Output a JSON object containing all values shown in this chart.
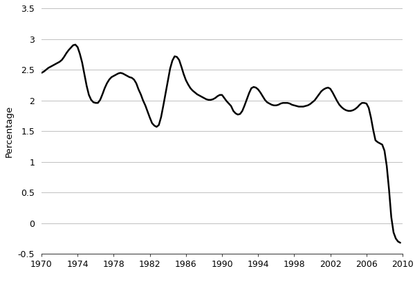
{
  "ylabel": "Percentage",
  "xlim": [
    1970,
    2010
  ],
  "ylim": [
    -0.5,
    3.5
  ],
  "yticks": [
    -0.5,
    0,
    0.5,
    1.0,
    1.5,
    2.0,
    2.5,
    3.0,
    3.5
  ],
  "ytick_labels": [
    "-0.5",
    "0",
    "0.5",
    "1",
    "1.5",
    "2",
    "2.5",
    "3",
    "3.5"
  ],
  "xticks": [
    1970,
    1974,
    1978,
    1982,
    1986,
    1990,
    1994,
    1998,
    2002,
    2006,
    2010
  ],
  "line_color": "#000000",
  "line_width": 1.8,
  "background_color": "#ffffff",
  "grid_color": "#c0c0c0",
  "data": {
    "x": [
      1970.0,
      1970.25,
      1970.5,
      1970.75,
      1971.0,
      1971.25,
      1971.5,
      1971.75,
      1972.0,
      1972.25,
      1972.5,
      1972.75,
      1973.0,
      1973.25,
      1973.5,
      1973.75,
      1974.0,
      1974.25,
      1974.5,
      1974.75,
      1975.0,
      1975.25,
      1975.5,
      1975.75,
      1976.0,
      1976.25,
      1976.5,
      1976.75,
      1977.0,
      1977.25,
      1977.5,
      1977.75,
      1978.0,
      1978.25,
      1978.5,
      1978.75,
      1979.0,
      1979.25,
      1979.5,
      1979.75,
      1980.0,
      1980.25,
      1980.5,
      1980.75,
      1981.0,
      1981.25,
      1981.5,
      1981.75,
      1982.0,
      1982.25,
      1982.5,
      1982.75,
      1983.0,
      1983.25,
      1983.5,
      1983.75,
      1984.0,
      1984.25,
      1984.5,
      1984.75,
      1985.0,
      1985.25,
      1985.5,
      1985.75,
      1986.0,
      1986.25,
      1986.5,
      1986.75,
      1987.0,
      1987.25,
      1987.5,
      1987.75,
      1988.0,
      1988.25,
      1988.5,
      1988.75,
      1989.0,
      1989.25,
      1989.5,
      1989.75,
      1990.0,
      1990.25,
      1990.5,
      1990.75,
      1991.0,
      1991.25,
      1991.5,
      1991.75,
      1992.0,
      1992.25,
      1992.5,
      1992.75,
      1993.0,
      1993.25,
      1993.5,
      1993.75,
      1994.0,
      1994.25,
      1994.5,
      1994.75,
      1995.0,
      1995.25,
      1995.5,
      1995.75,
      1996.0,
      1996.25,
      1996.5,
      1996.75,
      1997.0,
      1997.25,
      1997.5,
      1997.75,
      1998.0,
      1998.25,
      1998.5,
      1998.75,
      1999.0,
      1999.25,
      1999.5,
      1999.75,
      2000.0,
      2000.25,
      2000.5,
      2000.75,
      2001.0,
      2001.25,
      2001.5,
      2001.75,
      2002.0,
      2002.25,
      2002.5,
      2002.75,
      2003.0,
      2003.25,
      2003.5,
      2003.75,
      2004.0,
      2004.25,
      2004.5,
      2004.75,
      2005.0,
      2005.25,
      2005.5,
      2005.75,
      2006.0,
      2006.25,
      2006.5,
      2006.75,
      2007.0,
      2007.25,
      2007.5,
      2007.75,
      2008.0,
      2008.25,
      2008.5,
      2008.75,
      2009.0,
      2009.25,
      2009.5,
      2009.75
    ],
    "y": [
      2.45,
      2.47,
      2.5,
      2.53,
      2.55,
      2.57,
      2.59,
      2.61,
      2.63,
      2.66,
      2.71,
      2.77,
      2.82,
      2.86,
      2.9,
      2.91,
      2.87,
      2.76,
      2.62,
      2.43,
      2.24,
      2.09,
      2.01,
      1.97,
      1.96,
      1.96,
      2.01,
      2.1,
      2.2,
      2.28,
      2.34,
      2.38,
      2.4,
      2.42,
      2.44,
      2.45,
      2.44,
      2.42,
      2.4,
      2.38,
      2.37,
      2.34,
      2.28,
      2.18,
      2.1,
      2.0,
      1.92,
      1.82,
      1.72,
      1.63,
      1.59,
      1.57,
      1.6,
      1.73,
      1.92,
      2.12,
      2.32,
      2.52,
      2.65,
      2.72,
      2.71,
      2.66,
      2.55,
      2.43,
      2.33,
      2.26,
      2.2,
      2.16,
      2.13,
      2.1,
      2.08,
      2.06,
      2.04,
      2.02,
      2.01,
      2.01,
      2.02,
      2.04,
      2.07,
      2.09,
      2.09,
      2.04,
      1.99,
      1.95,
      1.91,
      1.83,
      1.79,
      1.77,
      1.78,
      1.83,
      1.92,
      2.02,
      2.12,
      2.2,
      2.22,
      2.21,
      2.18,
      2.13,
      2.07,
      2.01,
      1.97,
      1.95,
      1.93,
      1.92,
      1.92,
      1.93,
      1.95,
      1.96,
      1.96,
      1.96,
      1.95,
      1.93,
      1.92,
      1.91,
      1.9,
      1.9,
      1.9,
      1.91,
      1.92,
      1.94,
      1.97,
      2.0,
      2.05,
      2.1,
      2.15,
      2.18,
      2.2,
      2.21,
      2.19,
      2.13,
      2.06,
      1.99,
      1.93,
      1.89,
      1.86,
      1.84,
      1.83,
      1.83,
      1.84,
      1.86,
      1.89,
      1.93,
      1.96,
      1.96,
      1.95,
      1.88,
      1.72,
      1.52,
      1.35,
      1.32,
      1.3,
      1.28,
      1.18,
      0.93,
      0.55,
      0.1,
      -0.15,
      -0.25,
      -0.3,
      -0.32
    ]
  }
}
